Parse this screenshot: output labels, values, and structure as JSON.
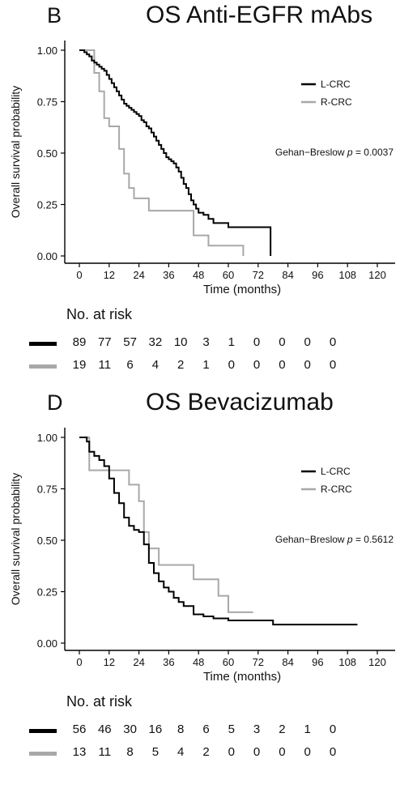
{
  "colors": {
    "l_crc": "#000000",
    "r_crc": "#a8a8a8",
    "axis": "#000000"
  },
  "chart_data": [
    {
      "type": "line",
      "panel_letter": "B",
      "title": "OS Anti-EGFR mAbs",
      "xlabel": "Time (months)",
      "ylabel": "Overall survival probability",
      "xlim": [
        0,
        120
      ],
      "ylim": [
        0,
        1
      ],
      "x_ticks": [
        "0",
        "12",
        "24",
        "36",
        "48",
        "60",
        "72",
        "84",
        "96",
        "108",
        "120"
      ],
      "y_ticks": [
        "0.00",
        "0.25",
        "0.50",
        "0.75",
        "1.00"
      ],
      "legend_position": "top-right",
      "annotation_prefix": "Gehan−Breslow ",
      "annotation_p": "p",
      "annotation_value": " = 0.0037",
      "series": [
        {
          "name": "L-CRC",
          "x": [
            0,
            2,
            3,
            4,
            5,
            6,
            7,
            8,
            9,
            10,
            11,
            12,
            13,
            14,
            15,
            16,
            17,
            18,
            19,
            20,
            21,
            22,
            23,
            24,
            25,
            26,
            27,
            28,
            29,
            30,
            31,
            32,
            33,
            34,
            35,
            36,
            37,
            38,
            39,
            40,
            41,
            42,
            43,
            44,
            45,
            46,
            47,
            48,
            50,
            52,
            54,
            60,
            66,
            70,
            76,
            77
          ],
          "y": [
            1.0,
            0.99,
            0.98,
            0.97,
            0.95,
            0.94,
            0.93,
            0.92,
            0.91,
            0.9,
            0.88,
            0.86,
            0.84,
            0.82,
            0.8,
            0.78,
            0.76,
            0.74,
            0.73,
            0.72,
            0.71,
            0.7,
            0.69,
            0.68,
            0.66,
            0.65,
            0.63,
            0.62,
            0.6,
            0.58,
            0.56,
            0.54,
            0.52,
            0.5,
            0.48,
            0.47,
            0.46,
            0.45,
            0.43,
            0.41,
            0.38,
            0.35,
            0.33,
            0.3,
            0.27,
            0.25,
            0.23,
            0.21,
            0.2,
            0.18,
            0.16,
            0.14,
            0.14,
            0.14,
            0.14,
            0.0
          ]
        },
        {
          "name": "R-CRC",
          "x": [
            0,
            6,
            8,
            10,
            12,
            16,
            18,
            20,
            22,
            28,
            36,
            46,
            48,
            52,
            60,
            66
          ],
          "y": [
            1.0,
            0.89,
            0.8,
            0.67,
            0.63,
            0.52,
            0.4,
            0.33,
            0.28,
            0.22,
            0.22,
            0.1,
            0.1,
            0.05,
            0.05,
            0.0
          ]
        }
      ],
      "risk_table": {
        "title": "No. at risk",
        "rows": [
          {
            "series": "L-CRC",
            "values": [
              "89",
              "77",
              "57",
              "32",
              "10",
              "3",
              "1",
              "0",
              "0",
              "0",
              "0"
            ]
          },
          {
            "series": "R-CRC",
            "values": [
              "19",
              "11",
              "6",
              "4",
              "2",
              "1",
              "0",
              "0",
              "0",
              "0",
              "0"
            ]
          }
        ]
      }
    },
    {
      "type": "line",
      "panel_letter": "D",
      "title": "OS Bevacizumab",
      "xlabel": "Time (months)",
      "ylabel": "Overall survival probability",
      "xlim": [
        0,
        120
      ],
      "ylim": [
        0,
        1
      ],
      "x_ticks": [
        "0",
        "12",
        "24",
        "36",
        "48",
        "60",
        "72",
        "84",
        "96",
        "108",
        "120"
      ],
      "y_ticks": [
        "0.00",
        "0.25",
        "0.50",
        "0.75",
        "1.00"
      ],
      "legend_position": "top-right",
      "annotation_prefix": "Gehan−Breslow ",
      "annotation_p": "p",
      "annotation_value": " = 0.5612",
      "series": [
        {
          "name": "L-CRC",
          "x": [
            0,
            3,
            4,
            6,
            8,
            10,
            12,
            14,
            16,
            18,
            20,
            22,
            24,
            26,
            28,
            30,
            32,
            34,
            36,
            38,
            40,
            42,
            46,
            50,
            54,
            60,
            66,
            74,
            78,
            112
          ],
          "y": [
            1.0,
            0.98,
            0.93,
            0.91,
            0.89,
            0.86,
            0.8,
            0.73,
            0.68,
            0.61,
            0.57,
            0.55,
            0.54,
            0.48,
            0.39,
            0.34,
            0.3,
            0.27,
            0.25,
            0.22,
            0.2,
            0.18,
            0.14,
            0.13,
            0.12,
            0.11,
            0.11,
            0.11,
            0.09,
            0.09
          ]
        },
        {
          "name": "R-CRC",
          "x": [
            0,
            4,
            10,
            20,
            24,
            26,
            28,
            32,
            46,
            56,
            60,
            66,
            70
          ],
          "y": [
            1.0,
            0.84,
            0.84,
            0.77,
            0.69,
            0.54,
            0.46,
            0.38,
            0.31,
            0.23,
            0.15,
            0.15,
            0.15
          ]
        }
      ],
      "risk_table": {
        "title": "No. at risk",
        "rows": [
          {
            "series": "L-CRC",
            "values": [
              "56",
              "46",
              "30",
              "16",
              "8",
              "6",
              "5",
              "3",
              "2",
              "1",
              "0"
            ]
          },
          {
            "series": "R-CRC",
            "values": [
              "13",
              "11",
              "8",
              "5",
              "4",
              "2",
              "0",
              "0",
              "0",
              "0",
              "0"
            ]
          }
        ]
      }
    }
  ]
}
